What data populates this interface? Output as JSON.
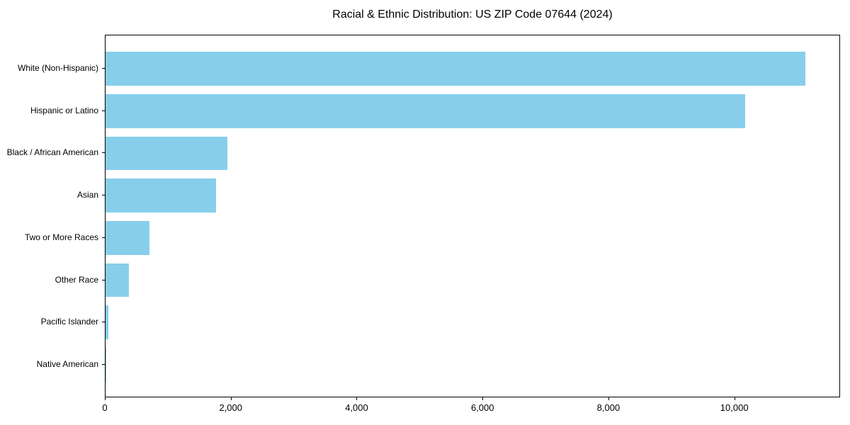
{
  "chart_data": {
    "type": "bar",
    "orientation": "horizontal",
    "title": "Racial & Ethnic Distribution: US ZIP Code 07644 (2024)",
    "xlabel": "",
    "ylabel": "",
    "categories": [
      "White (Non-Hispanic)",
      "Hispanic or Latino",
      "Black / African American",
      "Asian",
      "Two or More Races",
      "Other Race",
      "Pacific Islander",
      "Native American"
    ],
    "values": [
      11120,
      10160,
      1930,
      1760,
      700,
      370,
      50,
      10
    ],
    "xlim": [
      0,
      11680
    ],
    "xticks": [
      0,
      2000,
      4000,
      6000,
      8000,
      10000
    ],
    "xtick_labels": [
      "0",
      "2,000",
      "4,000",
      "6,000",
      "8,000",
      "10,000"
    ],
    "bar_color": "#87CEEB",
    "axis_color": "#000000",
    "text_color": "#000000",
    "grid": false,
    "legend": null
  }
}
